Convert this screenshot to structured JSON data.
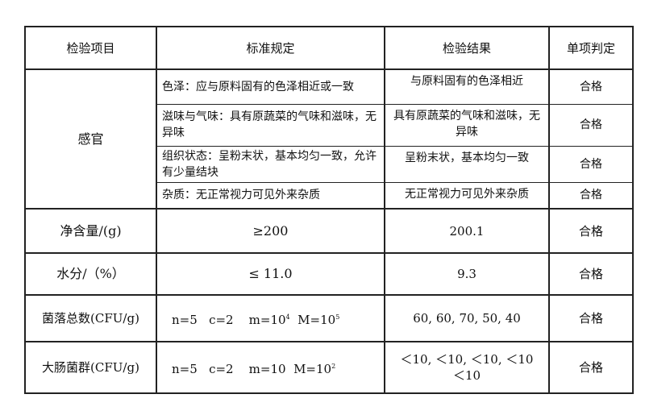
{
  "header": {
    "item": "检验项目",
    "standard": "标准规定",
    "result": "检验结果",
    "judgement": "单项判定"
  },
  "sensory": {
    "label": "感官",
    "rows": [
      {
        "standard": "色泽：应与原料固有的色泽相近或一致",
        "result": "与原料固有的色泽相近",
        "judgement": "合格"
      },
      {
        "standard": "滋味与气味：具有原蔬菜的气味和滋味，无异味",
        "result": "具有原蔬菜的气味和滋味，无异味",
        "judgement": "合格"
      },
      {
        "standard": "组织状态：呈粉末状，基本均匀一致，允许有少量结块",
        "result": "呈粉末状，基本均匀一致",
        "judgement": "合格"
      },
      {
        "standard": "杂质：无正常视力可见外来杂质",
        "result": "无正常视力可见外来杂质",
        "judgement": "合格"
      }
    ]
  },
  "net": {
    "item": "净含量/(g)",
    "standard": "≥200",
    "result": "200.1",
    "judgement": "合格"
  },
  "moisture": {
    "item": "水分/（%）",
    "standard": "≤ 11.0",
    "result": "9.3",
    "judgement": "合格"
  },
  "colony": {
    "item": "菌落总数(CFU/g)",
    "standard_prefix": "n=5   c=2    m=10",
    "m_exp": "4",
    "standard_mid": "  M=10",
    "M_exp": "5",
    "result": "60, 60, 70, 50, 40",
    "judgement": "合格"
  },
  "coliform": {
    "item": "大肠菌群(CFU/g)",
    "standard_prefix": "n=5   c=2    m=10  M=10",
    "M_exp": "2",
    "result": "＜10, ＜10, ＜10, ＜10 ＜10",
    "judgement": "合格"
  }
}
